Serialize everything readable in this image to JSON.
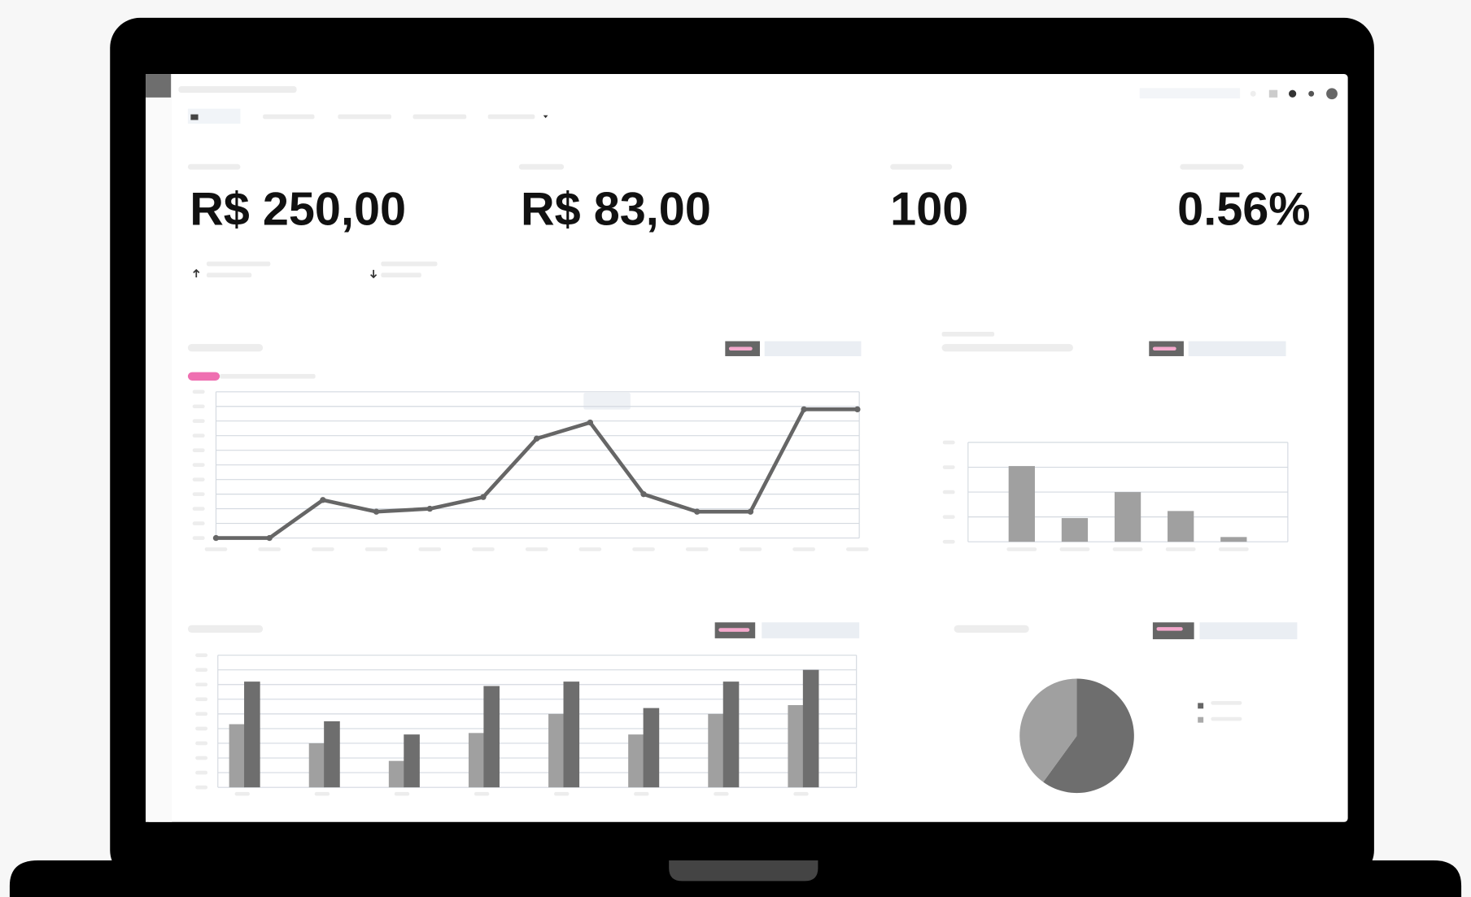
{
  "kpis": [
    "R$ 250,00",
    "R$ 83,00",
    "100",
    "0.56%"
  ],
  "line_chart": {
    "type": "line",
    "color": "#666666",
    "values": [
      0,
      0,
      2.6,
      1.8,
      2.0,
      2.8,
      6.8,
      7.9,
      3.0,
      1.8,
      1.8,
      8.8,
      8.8
    ],
    "ylim": [
      0,
      10
    ]
  },
  "bar_chart": {
    "type": "bar",
    "color": "#a0a0a0",
    "values": [
      3.2,
      1.0,
      2.1,
      1.3,
      0.2
    ],
    "ylim": [
      0,
      4.2
    ]
  },
  "grouped_chart": {
    "type": "grouped_bar",
    "series": [
      {
        "color": "#a0a0a0",
        "values": [
          4.3,
          3.0,
          1.8,
          3.7,
          5.0,
          3.6,
          5.0,
          5.6
        ]
      },
      {
        "color": "#6e6e6e",
        "values": [
          7.2,
          4.5,
          3.6,
          6.9,
          7.2,
          5.4,
          7.2,
          8.0
        ]
      }
    ],
    "ylim": [
      0,
      9
    ]
  },
  "pie_chart": {
    "type": "pie",
    "values": [
      60,
      40
    ],
    "colors": [
      "#6e6e6e",
      "#a0a0a0"
    ]
  }
}
